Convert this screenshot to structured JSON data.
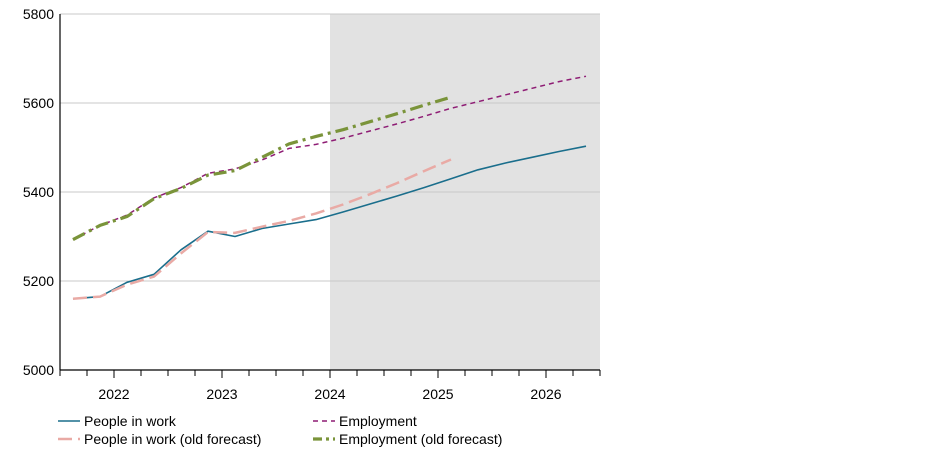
{
  "chart_data": {
    "type": "line",
    "ylim": [
      5000,
      5800
    ],
    "y_ticks": [
      5000,
      5200,
      5400,
      5600,
      5800
    ],
    "x_range": [
      2021.5,
      2026.5
    ],
    "x_ticks": [
      "2022",
      "2023",
      "2024",
      "2025",
      "2026"
    ],
    "shaded_region": {
      "from": 2024.0,
      "to": 2026.5,
      "label": ""
    },
    "grid": true,
    "legend_position": "bottom",
    "series": [
      {
        "name": "People in work",
        "color": "#1a6e8c",
        "style": "solid",
        "x": [
          2021.62,
          2021.87,
          2022.12,
          2022.37,
          2022.62,
          2022.87,
          2023.12,
          2023.37,
          2023.62,
          2023.87,
          2024.12,
          2024.37,
          2024.62,
          2024.87,
          2025.12,
          2025.37,
          2025.62,
          2025.87,
          2026.12,
          2026.37
        ],
        "values": [
          5160,
          5165,
          5197,
          5215,
          5270,
          5312,
          5300,
          5318,
          5328,
          5338,
          5355,
          5373,
          5391,
          5410,
          5430,
          5450,
          5465,
          5478,
          5491,
          5503
        ]
      },
      {
        "name": "People in work (old forecast)",
        "color": "#e9aaa5",
        "style": "longdash",
        "x": [
          2021.62,
          2021.87,
          2022.12,
          2022.37,
          2022.62,
          2022.87,
          2023.12,
          2023.37,
          2023.62,
          2023.87,
          2024.12,
          2024.37,
          2024.62,
          2024.87,
          2025.12
        ],
        "values": [
          5160,
          5165,
          5192,
          5210,
          5262,
          5310,
          5308,
          5322,
          5335,
          5352,
          5372,
          5395,
          5420,
          5447,
          5473
        ]
      },
      {
        "name": "Employment",
        "color": "#8e1c74",
        "style": "shortdash",
        "x": [
          2021.62,
          2021.87,
          2022.12,
          2022.37,
          2022.62,
          2022.87,
          2023.12,
          2023.37,
          2023.62,
          2023.87,
          2024.12,
          2024.37,
          2024.62,
          2024.87,
          2025.12,
          2025.37,
          2025.62,
          2025.87,
          2026.12,
          2026.37
        ],
        "values": [
          5293,
          5325,
          5348,
          5387,
          5410,
          5442,
          5452,
          5472,
          5498,
          5507,
          5521,
          5537,
          5553,
          5570,
          5588,
          5603,
          5618,
          5633,
          5648,
          5660
        ]
      },
      {
        "name": "Employment (old forecast)",
        "color": "#7a943a",
        "style": "dashdot",
        "x": [
          2021.62,
          2021.87,
          2022.12,
          2022.37,
          2022.62,
          2022.87,
          2023.12,
          2023.37,
          2023.62,
          2023.87,
          2024.12,
          2024.37,
          2024.62,
          2024.87,
          2025.12
        ],
        "values": [
          5293,
          5325,
          5345,
          5385,
          5408,
          5438,
          5448,
          5478,
          5508,
          5525,
          5540,
          5558,
          5576,
          5595,
          5613
        ]
      }
    ]
  }
}
